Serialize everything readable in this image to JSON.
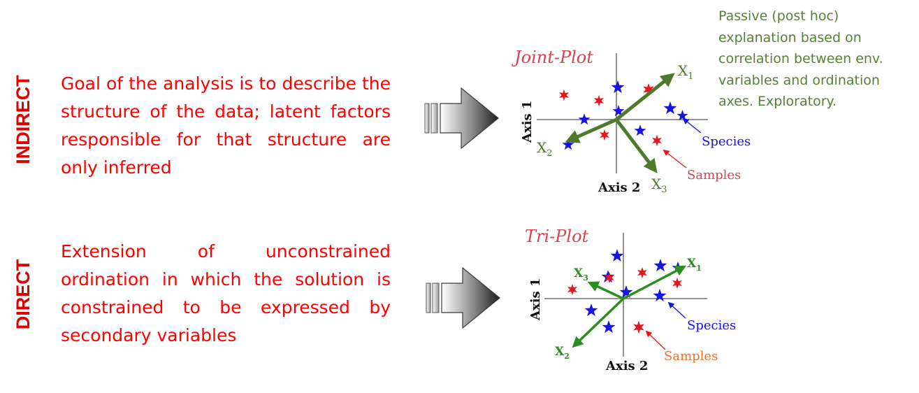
{
  "rows": [
    {
      "label": "INDIRECT",
      "description": "Goal of the analysis is to describe the structure of the data; latent factors responsible for that structure are only inferred",
      "plot": {
        "title": "Joint-Plot",
        "axis1": "Axis 1",
        "axis2": "Axis 2",
        "species_label": "Species",
        "samples_label": "Samples",
        "vectors": [
          {
            "letter": "X",
            "sub": "1"
          },
          {
            "letter": "X",
            "sub": "2"
          },
          {
            "letter": "X",
            "sub": "3"
          }
        ]
      }
    },
    {
      "label": "DIRECT",
      "description": "Extension of unconstrained ordination in which the solution is constrained to be expressed by secondary variables",
      "plot": {
        "title": "Tri-Plot",
        "axis1": "Axis 1",
        "axis2": "Axis 2",
        "species_label": "Species",
        "samples_label": "Samples",
        "vectors": [
          {
            "letter": "X",
            "sub": "1"
          },
          {
            "letter": "X",
            "sub": "2"
          },
          {
            "letter": "X",
            "sub": "3"
          }
        ]
      }
    }
  ],
  "note": "Passive (post hoc) explanation based on correlation between env. variables and ordination axes. Exploratory.",
  "colors": {
    "label_red": "#e00000",
    "text_red": "#ff0000",
    "note_green": "#548235",
    "species_blue": "#1414e6",
    "samples_red": "#e8141e",
    "vector_green_1": "#4e7a2c",
    "vector_green_2": "#2a8f1e",
    "title_pink": "#d9434e",
    "samples_orange": "#f07030"
  }
}
